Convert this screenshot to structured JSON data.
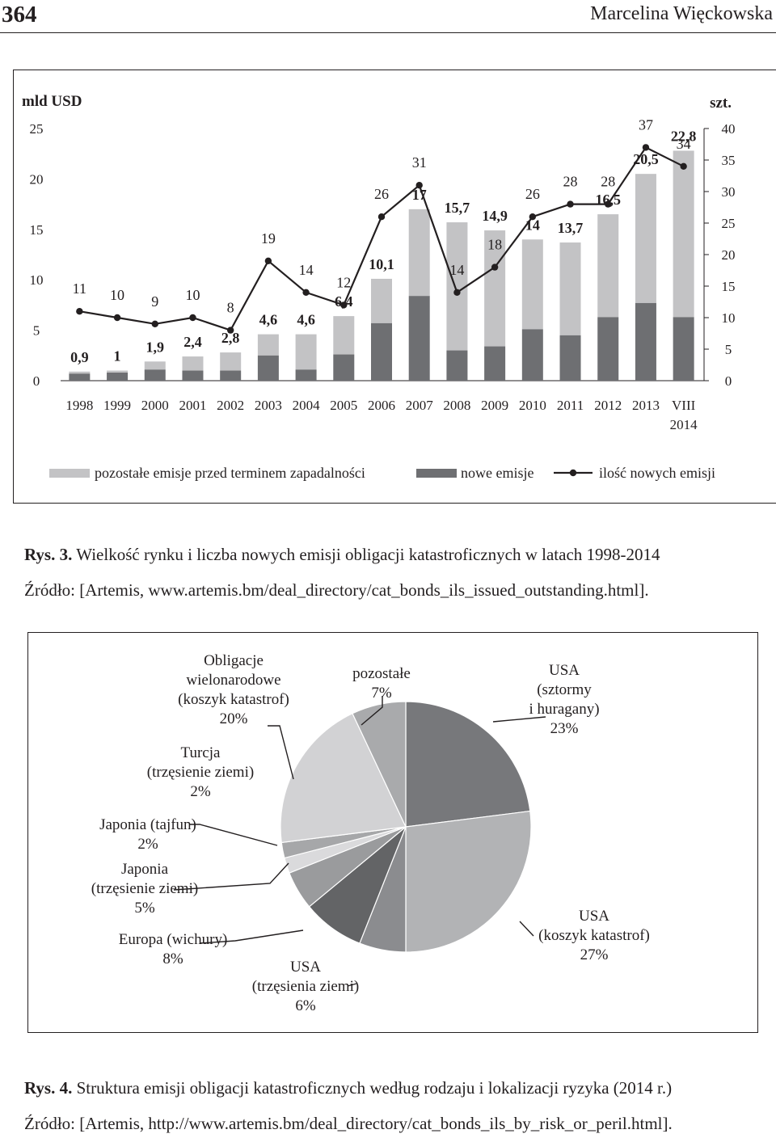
{
  "header": {
    "page_number": "364",
    "author": "Marcelina Więckowska"
  },
  "colors": {
    "other": "#c3c3c5",
    "new": "#6e6f72",
    "line": "#231f20"
  },
  "chart_data": [
    {
      "type": "bar+line",
      "left_axis_label": "mld USD",
      "right_axis_label": "szt.",
      "left_ticks": [
        "0",
        "5",
        "10",
        "15",
        "20",
        "25"
      ],
      "right_ticks": [
        "0",
        "5",
        "10",
        "15",
        "20",
        "25",
        "30",
        "35",
        "40"
      ],
      "ylim_left": [
        0,
        25
      ],
      "ylim_right": [
        0,
        40
      ],
      "categories": [
        "1998",
        "1999",
        "2000",
        "2001",
        "2002",
        "2003",
        "2004",
        "2005",
        "2006",
        "2007",
        "2008",
        "2009",
        "2010",
        "2011",
        "2012",
        "2013",
        "VIII 2014"
      ],
      "total_labels": [
        "0,9",
        "1",
        "1,9",
        "2,4",
        "2,8",
        "4,6",
        "4,6",
        "6,4",
        "10,1",
        "17",
        "15,7",
        "14,9",
        "14",
        "13,7",
        "16,5",
        "20,5",
        "22,8"
      ],
      "series": [
        {
          "name": "nowe emisje",
          "axis": "left",
          "values": [
            0.7,
            0.8,
            1.1,
            1.0,
            1.0,
            2.5,
            1.1,
            2.6,
            5.7,
            8.4,
            3.0,
            3.4,
            5.1,
            4.5,
            6.3,
            7.7,
            6.3
          ]
        },
        {
          "name": "pozostałe emisje przed terminem zapadalności",
          "axis": "left",
          "values": [
            0.2,
            0.2,
            0.8,
            1.4,
            1.8,
            2.1,
            3.5,
            3.8,
            4.4,
            8.6,
            12.7,
            11.5,
            8.9,
            9.2,
            10.2,
            12.8,
            16.5
          ]
        },
        {
          "name": "ilość nowych emisji",
          "axis": "right",
          "values": [
            11,
            10,
            9,
            10,
            8,
            19,
            14,
            12,
            26,
            31,
            14,
            18,
            26,
            28,
            28,
            37,
            34
          ],
          "labels": [
            "11",
            "10",
            "9",
            "10",
            "8",
            "19",
            "14",
            "12",
            "26",
            "31",
            "14",
            "18",
            "26",
            "28",
            "28",
            "37",
            "34"
          ]
        }
      ],
      "legend": [
        "pozostałe emisje przed terminem zapadalności",
        "nowe emisje",
        "ilość nowych emisji"
      ]
    },
    {
      "type": "pie",
      "slices": [
        {
          "label": "USA (sztormy i huragany)",
          "lines": [
            "USA",
            "(sztormy",
            "i huragany)"
          ],
          "percent": 23,
          "percent_label": "23%",
          "color": "#77787b"
        },
        {
          "label": "USA (koszyk katastrof)",
          "lines": [
            "USA",
            "(koszyk katastrof)"
          ],
          "percent": 27,
          "percent_label": "27%",
          "color": "#b2b3b5"
        },
        {
          "label": "USA (trzęsienia ziemi)",
          "lines": [
            "USA",
            "(trzęsienia ziemi)"
          ],
          "percent": 6,
          "percent_label": "6%",
          "color": "#8b8c8f"
        },
        {
          "label": "Europa (wichury)",
          "lines": [
            "Europa (wichury)"
          ],
          "percent": 8,
          "percent_label": "8%",
          "color": "#636466"
        },
        {
          "label": "Japonia (trzęsienie ziemi)",
          "lines": [
            "Japonia",
            "(trzęsienie ziemi)"
          ],
          "percent": 5,
          "percent_label": "5%",
          "color": "#9a9b9d"
        },
        {
          "label": "Japonia (tajfun)",
          "lines": [
            "Japonia (tajfun)"
          ],
          "percent": 2,
          "percent_label": "2%",
          "color": "#dadadc"
        },
        {
          "label": "Turcja (trzęsienie ziemi)",
          "lines": [
            "Turcja",
            "(trzęsienie ziemi)"
          ],
          "percent": 2,
          "percent_label": "2%",
          "color": "#a6a7a9"
        },
        {
          "label": "Obligacje wielonarodowe (koszyk katastrof)",
          "lines": [
            "Obligacje",
            "wielonarodowe",
            "(koszyk katastrof)"
          ],
          "percent": 20,
          "percent_label": "20%",
          "color": "#d2d2d4"
        },
        {
          "label": "pozostałe",
          "lines": [
            "pozostałe"
          ],
          "percent": 7,
          "percent_label": "7%",
          "color": "#a9aaac"
        }
      ]
    }
  ],
  "captions": {
    "fig3_label": "Rys. 3.",
    "fig3_title": " Wielkość rynku i liczba nowych emisji obligacji katastroficznych w latach 1998-2014",
    "fig3_source": "Źródło: [Artemis, www.artemis.bm/deal_directory/cat_bonds_ils_issued_outstanding.html].",
    "fig4_label": "Rys. 4.",
    "fig4_title": " Struktura emisji obligacji katastroficznych według rodzaju i lokalizacji ryzyka (2014 r.)",
    "fig4_source": "Źródło: [Artemis, http://www.artemis.bm/deal_directory/cat_bonds_ils_by_risk_or_peril.html]."
  }
}
